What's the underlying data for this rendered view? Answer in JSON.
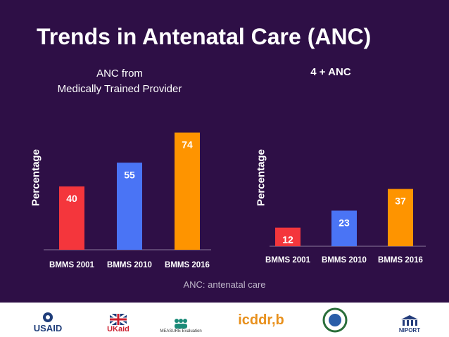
{
  "title": "Trends in Antenatal Care (ANC)",
  "footnote": "ANC: antenatal care",
  "logos": {
    "usaid": "USAID",
    "ukaid": "UKaid",
    "measure": "MEASURE Evaluation",
    "icddrb": "icddr,b",
    "niport": "NIPORT"
  },
  "chart_data": [
    {
      "type": "bar",
      "title": "ANC from Medically Trained Provider",
      "title_lines": [
        "ANC from",
        "Medically Trained Provider"
      ],
      "ylabel": "Percentage",
      "xlabel": "",
      "categories": [
        "BMMS 2001",
        "BMMS 2010",
        "BMMS 2016"
      ],
      "values": [
        40,
        55,
        74
      ],
      "colors": [
        "#f4363c",
        "#4a74f5",
        "#fe9400"
      ],
      "grid": false,
      "legend": "none"
    },
    {
      "type": "bar",
      "title": "4 + ANC",
      "ylabel": "Percentage",
      "xlabel": "",
      "categories": [
        "BMMS 2001",
        "BMMS 2010",
        "BMMS 2016"
      ],
      "values": [
        12,
        23,
        37
      ],
      "colors": [
        "#f4363c",
        "#4a74f5",
        "#fe9400"
      ],
      "grid": false,
      "legend": "none"
    }
  ]
}
